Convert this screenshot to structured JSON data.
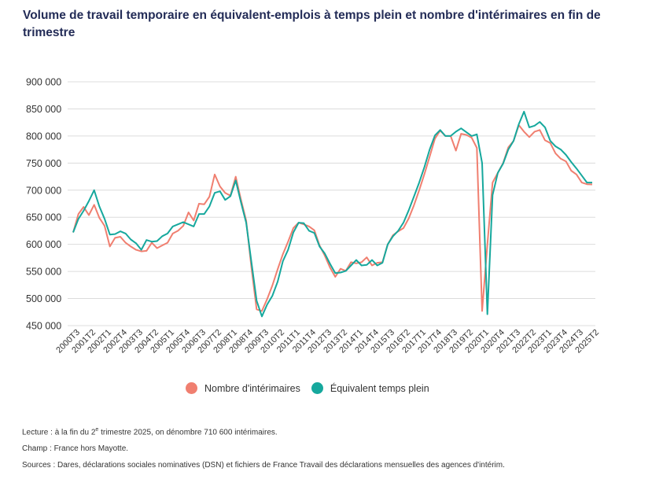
{
  "title": "Volume de travail temporaire en équivalent-emplois à temps plein et nombre d'intérimaires en fin de trimestre",
  "chart_data": {
    "type": "line",
    "title": "Volume de travail temporaire en équivalent-emplois à temps plein et nombre d'intérimaires en fin de trimestre",
    "xlabel": "",
    "ylabel": "",
    "ylim": [
      450000,
      900000
    ],
    "yticks": [
      900000,
      850000,
      800000,
      750000,
      700000,
      650000,
      600000,
      550000,
      500000,
      450000
    ],
    "ytick_labels": [
      "900 000",
      "850 000",
      "800 000",
      "750 000",
      "700 000",
      "650 000",
      "600 000",
      "550 000",
      "500 000",
      "450 000"
    ],
    "x_start": "2000T3",
    "x_end": "2025T2",
    "xtick_labels": [
      "2000T3",
      "2001T2",
      "2002T1",
      "2002T4",
      "2003T3",
      "2004T2",
      "2005T1",
      "2005T4",
      "2006T3",
      "2007T2",
      "2008T1",
      "2008T4",
      "2009T3",
      "2010T2",
      "2011T1",
      "2011T4",
      "2012T3",
      "2013T2",
      "2014T1",
      "2014T4",
      "2015T3",
      "2016T2",
      "2017T1",
      "2017T4",
      "2018T3",
      "2019T2",
      "2020T1",
      "2020T4",
      "2021T3",
      "2022T2",
      "2023T1",
      "2023T4",
      "2024T3",
      "2025T2"
    ],
    "grid": true,
    "legend": "bottom",
    "series": [
      {
        "name": "Nombre d'intérimaires",
        "color": "#f07f70",
        "values": [
          622000,
          656000,
          669000,
          654000,
          673000,
          649000,
          634000,
          596000,
          612000,
          614000,
          603000,
          596000,
          590000,
          587000,
          588000,
          603000,
          593000,
          598000,
          603000,
          620000,
          625000,
          634000,
          659000,
          644000,
          675000,
          674000,
          688000,
          729000,
          707000,
          695000,
          690000,
          725000,
          683000,
          644000,
          557000,
          480000,
          477000,
          499000,
          524000,
          554000,
          582000,
          605000,
          630000,
          640000,
          637000,
          633000,
          626000,
          598000,
          579000,
          557000,
          540000,
          555000,
          551000,
          567000,
          565000,
          567000,
          576000,
          561000,
          566000,
          567000,
          600000,
          617000,
          624000,
          630000,
          648000,
          672000,
          700000,
          730000,
          762000,
          795000,
          810000,
          800000,
          800000,
          773000,
          804000,
          802000,
          797000,
          778000,
          477000,
          600000,
          714000,
          732000,
          750000,
          779000,
          791000,
          820000,
          808000,
          798000,
          808000,
          811000,
          792000,
          787000,
          768000,
          758000,
          753000,
          736000,
          729000,
          714000,
          711000,
          710600
        ]
      },
      {
        "name": "Équivalent temps plein",
        "color": "#16a89d",
        "values": [
          622000,
          647000,
          662000,
          680000,
          700000,
          670000,
          647000,
          618000,
          619000,
          624000,
          620000,
          609000,
          602000,
          590000,
          608000,
          605000,
          606000,
          615000,
          620000,
          633000,
          637000,
          641000,
          637000,
          633000,
          656000,
          656000,
          670000,
          695000,
          698000,
          682000,
          689000,
          718000,
          678000,
          640000,
          567000,
          496000,
          467000,
          489000,
          505000,
          531000,
          569000,
          590000,
          622000,
          640000,
          639000,
          625000,
          621000,
          596000,
          583000,
          564000,
          547000,
          548000,
          551000,
          561000,
          571000,
          561000,
          562000,
          571000,
          561000,
          566000,
          600000,
          615000,
          625000,
          640000,
          663000,
          688000,
          714000,
          743000,
          775000,
          801000,
          811000,
          800000,
          800000,
          808000,
          814000,
          807000,
          800000,
          803000,
          750000,
          471000,
          691000,
          732000,
          749000,
          775000,
          791000,
          822000,
          845000,
          816000,
          819000,
          826000,
          816000,
          791000,
          781000,
          775000,
          765000,
          752000,
          740000,
          727000,
          714000,
          714000
        ]
      }
    ]
  },
  "legend": {
    "items": [
      {
        "label": "Nombre d'intérimaires",
        "color": "#f07f70"
      },
      {
        "label": "Équivalent temps plein",
        "color": "#16a89d"
      }
    ]
  },
  "notes": {
    "lecture_prefix": "Lecture : à la fin du 2",
    "lecture_sup": "e",
    "lecture_suffix": " trimestre 2025, on dénombre 710 600 intérimaires.",
    "champ": "Champ : France hors Mayotte.",
    "sources": "Sources : Dares, déclarations sociales nominatives (DSN) et fichiers de France Travail des déclarations mensuelles des agences d'intérim."
  }
}
